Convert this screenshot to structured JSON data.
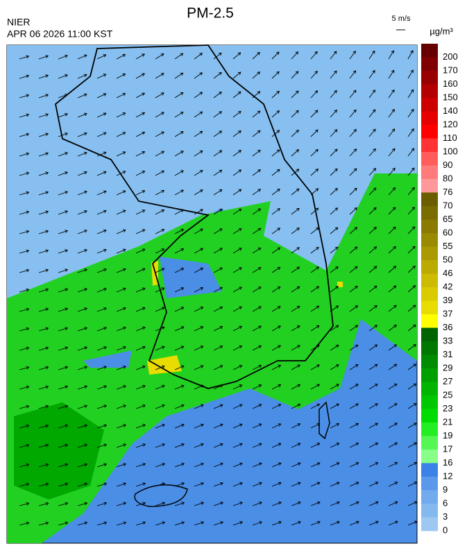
{
  "header": {
    "title": "PM-2.5",
    "agency": "NIER",
    "datetime": "APR 06 2026 11:00 KST",
    "wind_scale": "5 m/s"
  },
  "legend": {
    "unit": "µg/m³",
    "levels": [
      200,
      170,
      160,
      150,
      140,
      120,
      110,
      100,
      90,
      80,
      76,
      70,
      65,
      60,
      55,
      50,
      46,
      42,
      39,
      37,
      36,
      33,
      31,
      29,
      27,
      25,
      23,
      21,
      19,
      17,
      16,
      12,
      9,
      6,
      3,
      0
    ],
    "colors": [
      "#660000",
      "#800000",
      "#990000",
      "#b30000",
      "#cc0000",
      "#e60000",
      "#ff0000",
      "#ff3333",
      "#ff5c5c",
      "#ff7a7a",
      "#ff9999",
      "#6b5e00",
      "#7a6c00",
      "#8a7a00",
      "#9a8a00",
      "#aa9900",
      "#bbaa00",
      "#ccbb00",
      "#dcca00",
      "#e8dc00",
      "#ffff00",
      "#006400",
      "#007800",
      "#008c00",
      "#00a000",
      "#00b400",
      "#00c800",
      "#00dc00",
      "#22ee22",
      "#55f755",
      "#88ff88",
      "#3b82e8",
      "#5a98ec",
      "#72aaee",
      "#86b8f0",
      "#9cc8f2"
    ]
  }
}
